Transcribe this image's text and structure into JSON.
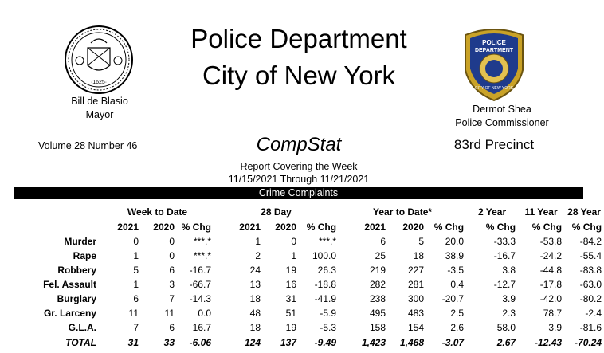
{
  "header": {
    "title_line1": "Police Department",
    "title_line2": "City of New York",
    "mayor_name": "Bill de Blasio",
    "mayor_title": "Mayor",
    "commissioner_name": "Dermot Shea",
    "commissioner_title": "Police Commissioner",
    "seal_text": "·1625·",
    "badge_text_1": "POLICE",
    "badge_text_2": "DEPARTMENT",
    "badge_text_3": "CITY OF NEW YORK"
  },
  "report": {
    "volume": "Volume 28  Number  46",
    "name": "CompStat",
    "precinct": "83rd Precinct",
    "covering": "Report Covering the Week",
    "dates": "11/15/2021  Through  11/21/2021",
    "section": "Crime Complaints"
  },
  "table": {
    "group_headers": [
      "Week to Date",
      "28 Day",
      "Year to Date*",
      "2 Year",
      "11 Year",
      "28 Year"
    ],
    "sub_headers": [
      "2021",
      "2020",
      "% Chg",
      "2021",
      "2020",
      "% Chg",
      "2021",
      "2020",
      "% Chg",
      "% Chg",
      "% Chg",
      "% Chg"
    ],
    "rows": [
      {
        "label": "Murder",
        "cells": [
          "0",
          "0",
          "***.*",
          "1",
          "0",
          "***.*",
          "6",
          "5",
          "20.0",
          "-33.3",
          "-53.8",
          "-84.2"
        ]
      },
      {
        "label": "Rape",
        "cells": [
          "1",
          "0",
          "***.*",
          "2",
          "1",
          "100.0",
          "25",
          "18",
          "38.9",
          "-16.7",
          "-24.2",
          "-55.4"
        ]
      },
      {
        "label": "Robbery",
        "cells": [
          "5",
          "6",
          "-16.7",
          "24",
          "19",
          "26.3",
          "219",
          "227",
          "-3.5",
          "3.8",
          "-44.8",
          "-83.8"
        ]
      },
      {
        "label": "Fel. Assault",
        "cells": [
          "1",
          "3",
          "-66.7",
          "13",
          "16",
          "-18.8",
          "282",
          "281",
          "0.4",
          "-12.7",
          "-17.8",
          "-63.0"
        ]
      },
      {
        "label": "Burglary",
        "cells": [
          "6",
          "7",
          "-14.3",
          "18",
          "31",
          "-41.9",
          "238",
          "300",
          "-20.7",
          "3.9",
          "-42.0",
          "-80.2"
        ]
      },
      {
        "label": "Gr. Larceny",
        "cells": [
          "11",
          "11",
          "0.0",
          "48",
          "51",
          "-5.9",
          "495",
          "483",
          "2.5",
          "2.3",
          "78.7",
          "-2.4"
        ]
      },
      {
        "label": "G.L.A.",
        "cells": [
          "7",
          "6",
          "16.7",
          "18",
          "19",
          "-5.3",
          "158",
          "154",
          "2.6",
          "58.0",
          "3.9",
          "-81.6"
        ]
      }
    ],
    "total": {
      "label": "TOTAL",
      "cells": [
        "31",
        "33",
        "-6.06",
        "124",
        "137",
        "-9.49",
        "1,423",
        "1,468",
        "-3.07",
        "2.67",
        "-12.43",
        "-70.24"
      ]
    }
  }
}
